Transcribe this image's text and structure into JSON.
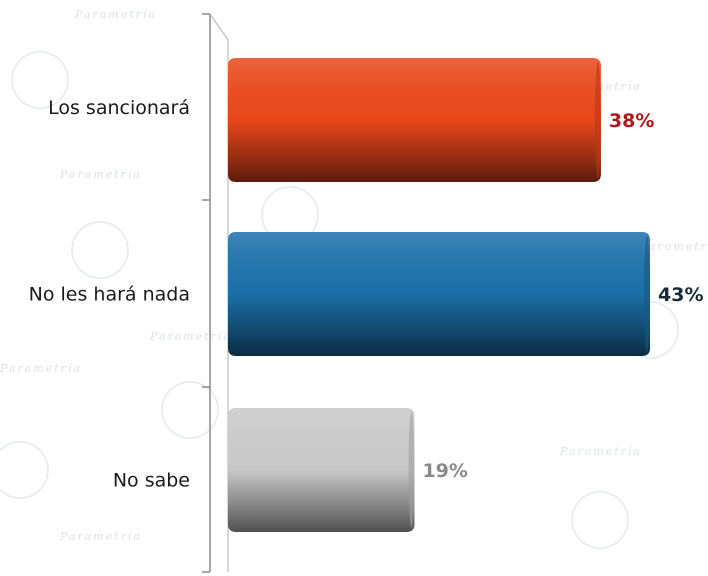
{
  "chart_data": {
    "type": "bar",
    "orientation": "horizontal",
    "categories": [
      "Los sancionará",
      "No les hará nada",
      "No sabe"
    ],
    "values": [
      38,
      43,
      19
    ],
    "value_labels": [
      "38%",
      "43%",
      "19%"
    ],
    "colors": [
      "#e8461a",
      "#1b6fa8",
      "#c8c8c8"
    ],
    "label_colors": [
      "#b01818",
      "#1a2a3a",
      "#8a8a8a"
    ],
    "title": "",
    "xlabel": "",
    "ylabel": "",
    "xlim": [
      0,
      43
    ],
    "grid": false,
    "legend": "none",
    "watermark": "Parametría"
  }
}
